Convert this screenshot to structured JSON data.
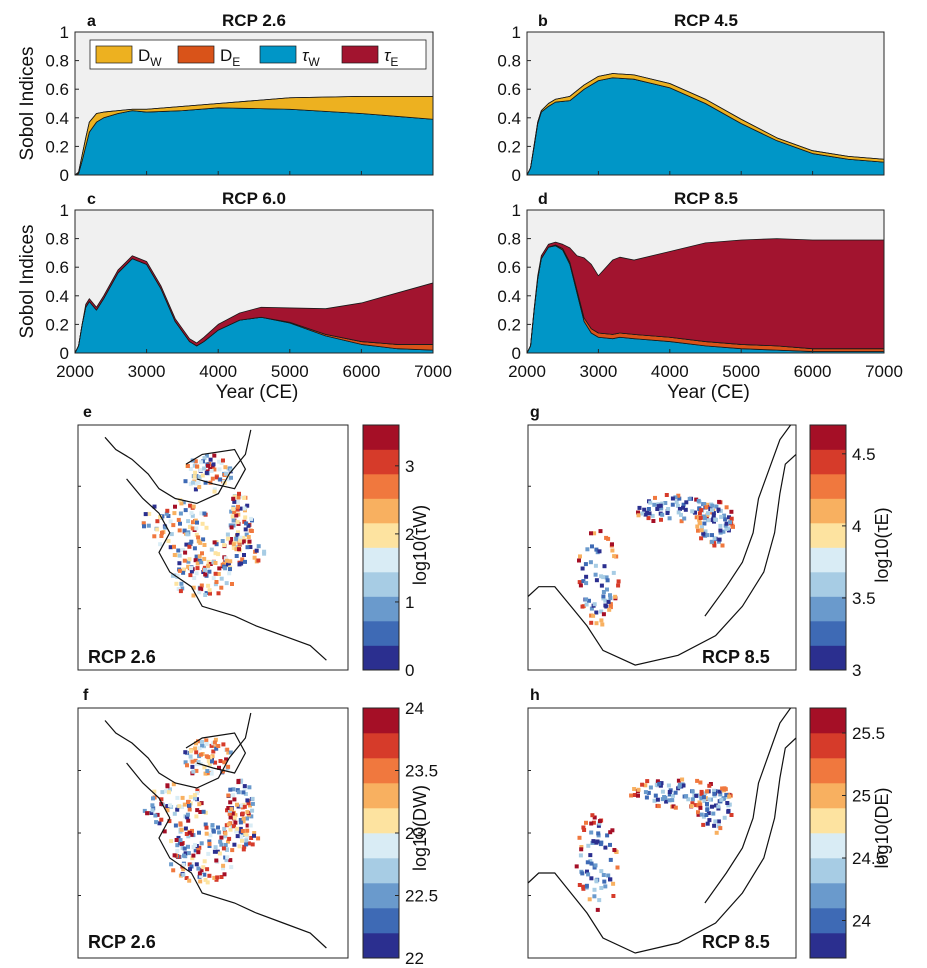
{
  "colors": {
    "D_W": "#EDB120",
    "D_E": "#D95319",
    "tau_W": "#0096C7",
    "tau_E": "#A2142F",
    "plot_bg": "#F0F0F0",
    "outline": "#1a1a1a",
    "diverging_scale": [
      "#2B2F8F",
      "#3E6AB5",
      "#6A9ACC",
      "#A7CCE4",
      "#D9ECF5",
      "#FDE3A0",
      "#F8B060",
      "#F0783E",
      "#D63B2A",
      "#A50F26"
    ]
  },
  "chart_data": [
    {
      "type": "area",
      "panel": "a",
      "title": "RCP 2.6",
      "ylabel": "Sobol Indices",
      "xlabel": "",
      "xlim": [
        2000,
        7000
      ],
      "ylim": [
        0,
        1
      ],
      "yticks": [
        "0",
        "0.2",
        "0.4",
        "0.6",
        "0.8",
        "1"
      ],
      "xticks": [],
      "legend": [
        "D_W",
        "D_E",
        "τ_W",
        "τ_E"
      ],
      "legend_labels": [
        "D",
        "D",
        "τ",
        "τ"
      ],
      "legend_subs": [
        "W",
        "E",
        "W",
        "E"
      ],
      "legend_placement": "top-left",
      "x": [
        2000,
        2050,
        2100,
        2150,
        2200,
        2300,
        2400,
        2600,
        2800,
        3000,
        3500,
        4000,
        5000,
        6000,
        7000
      ],
      "series": [
        {
          "key": "tau_W",
          "values": [
            0,
            0.01,
            0.1,
            0.2,
            0.3,
            0.37,
            0.4,
            0.43,
            0.45,
            0.44,
            0.45,
            0.47,
            0.46,
            0.43,
            0.39
          ]
        },
        {
          "key": "D_E",
          "values": [
            0,
            0,
            0,
            0,
            0,
            0,
            0,
            0,
            0,
            0,
            0,
            0,
            0,
            0,
            0
          ]
        },
        {
          "key": "D_W",
          "values": [
            0,
            0.01,
            0.04,
            0.06,
            0.07,
            0.06,
            0.04,
            0.02,
            0.01,
            0.02,
            0.03,
            0.03,
            0.08,
            0.12,
            0.16
          ]
        },
        {
          "key": "tau_E",
          "values": [
            0,
            0,
            0,
            0,
            0,
            0,
            0,
            0,
            0,
            0,
            0,
            0,
            0,
            0,
            0
          ]
        }
      ]
    },
    {
      "type": "area",
      "panel": "b",
      "title": "RCP 4.5",
      "ylabel": "",
      "xlabel": "",
      "xlim": [
        2000,
        7000
      ],
      "ylim": [
        0,
        1
      ],
      "yticks": [
        "0",
        "0.2",
        "0.4",
        "0.6",
        "0.8",
        "1"
      ],
      "xticks": [],
      "x": [
        2000,
        2050,
        2100,
        2150,
        2200,
        2300,
        2400,
        2600,
        2800,
        3000,
        3200,
        3500,
        4000,
        4500,
        5000,
        5500,
        6000,
        6500,
        7000
      ],
      "series": [
        {
          "key": "tau_W",
          "values": [
            0,
            0.05,
            0.2,
            0.36,
            0.44,
            0.48,
            0.51,
            0.52,
            0.6,
            0.66,
            0.68,
            0.67,
            0.61,
            0.5,
            0.36,
            0.24,
            0.15,
            0.11,
            0.09
          ]
        },
        {
          "key": "D_E",
          "values": [
            0,
            0,
            0,
            0,
            0,
            0,
            0,
            0,
            0,
            0,
            0,
            0,
            0,
            0,
            0,
            0,
            0,
            0,
            0
          ]
        },
        {
          "key": "D_W",
          "values": [
            0,
            0,
            0.01,
            0.01,
            0.01,
            0.02,
            0.02,
            0.03,
            0.03,
            0.03,
            0.03,
            0.03,
            0.03,
            0.03,
            0.03,
            0.02,
            0.02,
            0.02,
            0.02
          ]
        },
        {
          "key": "tau_E",
          "values": [
            0,
            0,
            0,
            0,
            0,
            0,
            0,
            0,
            0,
            0,
            0,
            0,
            0,
            0,
            0,
            0,
            0,
            0,
            0
          ]
        }
      ]
    },
    {
      "type": "area",
      "panel": "c",
      "title": "RCP 6.0",
      "ylabel": "Sobol Indices",
      "xlabel": "Year (CE)",
      "xlim": [
        2000,
        7000
      ],
      "ylim": [
        0,
        1
      ],
      "yticks": [
        "0",
        "0.2",
        "0.4",
        "0.6",
        "0.8",
        "1"
      ],
      "xticks": [
        "2000",
        "3000",
        "4000",
        "5000",
        "6000",
        "7000"
      ],
      "x": [
        2000,
        2050,
        2100,
        2150,
        2200,
        2300,
        2400,
        2600,
        2800,
        3000,
        3200,
        3400,
        3600,
        3700,
        3800,
        4000,
        4300,
        4600,
        5000,
        5500,
        6000,
        6500,
        7000
      ],
      "series": [
        {
          "key": "tau_W",
          "values": [
            0,
            0.05,
            0.2,
            0.32,
            0.36,
            0.3,
            0.38,
            0.56,
            0.66,
            0.62,
            0.45,
            0.22,
            0.08,
            0.05,
            0.08,
            0.16,
            0.23,
            0.25,
            0.21,
            0.12,
            0.06,
            0.03,
            0.02
          ]
        },
        {
          "key": "D_E",
          "values": [
            0,
            0,
            0,
            0,
            0,
            0,
            0,
            0,
            0,
            0,
            0,
            0,
            0,
            0,
            0,
            0,
            0,
            0,
            0.005,
            0.01,
            0.02,
            0.03,
            0.04
          ]
        },
        {
          "key": "D_W",
          "values": [
            0,
            0,
            0,
            0,
            0,
            0,
            0,
            0,
            0,
            0,
            0,
            0,
            0,
            0,
            0,
            0,
            0,
            0,
            0,
            0,
            0,
            0,
            0
          ]
        },
        {
          "key": "tau_E",
          "values": [
            0,
            0,
            0,
            0.02,
            0.02,
            0.02,
            0.02,
            0.02,
            0.02,
            0.02,
            0.02,
            0.02,
            0.02,
            0.02,
            0.03,
            0.04,
            0.05,
            0.07,
            0.1,
            0.18,
            0.27,
            0.36,
            0.43
          ]
        }
      ]
    },
    {
      "type": "area",
      "panel": "d",
      "title": "RCP 8.5",
      "ylabel": "",
      "xlabel": "Year (CE)",
      "xlim": [
        2000,
        7000
      ],
      "ylim": [
        0,
        1
      ],
      "yticks": [
        "0",
        "0.2",
        "0.4",
        "0.6",
        "0.8",
        "1"
      ],
      "xticks": [
        "2000",
        "3000",
        "4000",
        "5000",
        "6000",
        "7000"
      ],
      "x": [
        2000,
        2050,
        2100,
        2150,
        2200,
        2300,
        2400,
        2500,
        2600,
        2700,
        2800,
        2900,
        3000,
        3200,
        3300,
        3500,
        4000,
        4500,
        5000,
        5500,
        6000,
        6500,
        7000
      ],
      "series": [
        {
          "key": "tau_W",
          "values": [
            0,
            0.05,
            0.3,
            0.52,
            0.66,
            0.74,
            0.75,
            0.72,
            0.62,
            0.42,
            0.22,
            0.14,
            0.11,
            0.1,
            0.11,
            0.1,
            0.08,
            0.05,
            0.03,
            0.02,
            0.01,
            0.01,
            0.01
          ]
        },
        {
          "key": "D_E",
          "values": [
            0,
            0,
            0,
            0,
            0,
            0,
            0.005,
            0.01,
            0.015,
            0.02,
            0.025,
            0.03,
            0.03,
            0.03,
            0.03,
            0.03,
            0.03,
            0.03,
            0.03,
            0.03,
            0.02,
            0.02,
            0.02
          ]
        },
        {
          "key": "D_W",
          "values": [
            0,
            0,
            0,
            0,
            0,
            0,
            0,
            0,
            0,
            0,
            0,
            0,
            0,
            0,
            0,
            0,
            0,
            0,
            0,
            0,
            0,
            0,
            0
          ]
        },
        {
          "key": "tau_E",
          "values": [
            0,
            0,
            0.01,
            0.02,
            0.02,
            0.02,
            0.02,
            0.03,
            0.1,
            0.24,
            0.42,
            0.45,
            0.4,
            0.52,
            0.53,
            0.52,
            0.6,
            0.69,
            0.73,
            0.75,
            0.76,
            0.76,
            0.76
          ]
        }
      ]
    },
    {
      "type": "heatmap",
      "panel": "e",
      "label": "RCP 2.6",
      "variable": "τ_W",
      "colorbar_label": "log10(τW)",
      "colorbar_ticks": [
        "0",
        "1",
        "2",
        "3"
      ],
      "colorbar_range": [
        0,
        3.6
      ],
      "map": "west"
    },
    {
      "type": "heatmap",
      "panel": "g",
      "label": "RCP 8.5",
      "variable": "τ_E",
      "colorbar_label": "log10(τE)",
      "colorbar_ticks": [
        "3",
        "3.5",
        "4",
        "4.5"
      ],
      "colorbar_range": [
        3,
        4.7
      ],
      "map": "east"
    },
    {
      "type": "heatmap",
      "panel": "f",
      "label": "RCP 2.6",
      "variable": "D_W",
      "colorbar_label": "log10(DW)",
      "colorbar_ticks": [
        "22",
        "22.5",
        "23",
        "23.5",
        "24"
      ],
      "colorbar_range": [
        22,
        24
      ],
      "map": "west"
    },
    {
      "type": "heatmap",
      "panel": "h",
      "label": "RCP 8.5",
      "variable": "D_E",
      "colorbar_label": "log10(DE)",
      "colorbar_ticks": [
        "24",
        "24.5",
        "25",
        "25.5"
      ],
      "colorbar_range": [
        23.7,
        25.7
      ],
      "map": "east"
    }
  ]
}
